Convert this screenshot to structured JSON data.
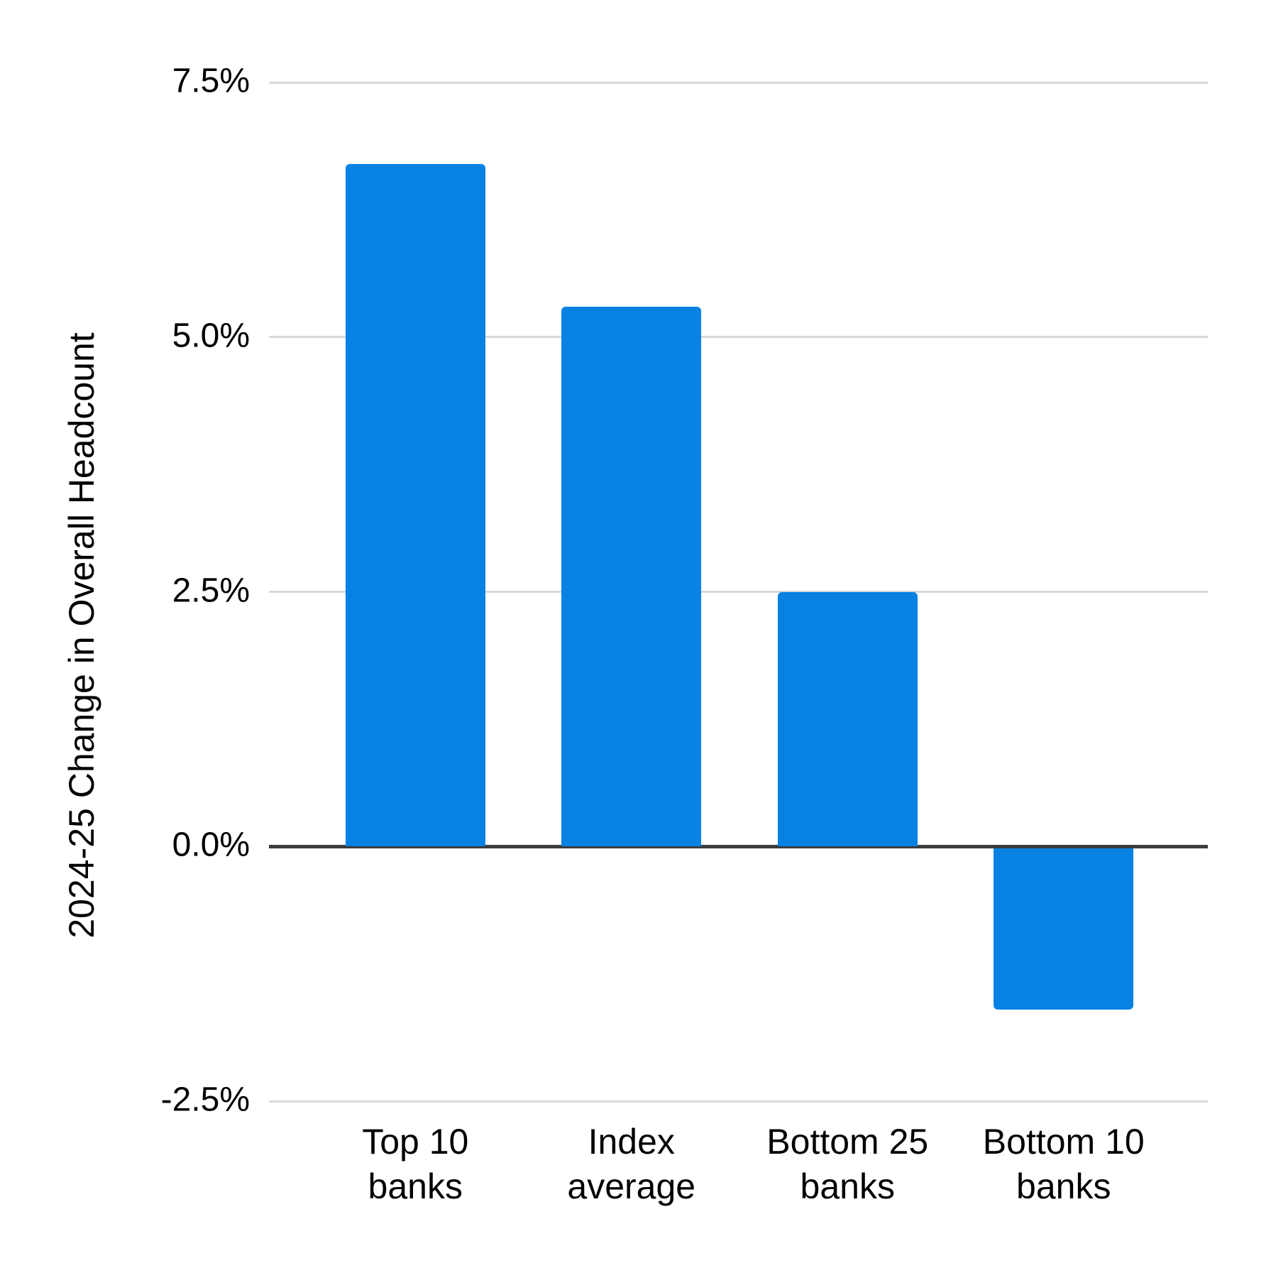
{
  "chart_data": {
    "type": "bar",
    "title": "",
    "categories": [
      "Top 10\nbanks",
      "Index\naverage",
      "Bottom 25\nbanks",
      "Bottom 10\nbanks"
    ],
    "values": [
      6.7,
      5.3,
      2.5,
      -1.6
    ],
    "xlabel": "",
    "ylabel": "2024-25 Change in Overall Headcount",
    "ylim": [
      -2.5,
      7.5
    ],
    "yticks": [
      7.5,
      5.0,
      2.5,
      0.0,
      -2.5
    ],
    "ytick_labels": [
      "7.5%",
      "5.0%",
      "2.5%",
      "0.0%",
      "-2.5%"
    ],
    "grid": true,
    "legend": "none",
    "colors": {
      "bar": "#0782e3",
      "gridline": "#d9d9d9",
      "zero_line": "#3c3c3c",
      "text": "#000000",
      "background": "#ffffff"
    }
  }
}
